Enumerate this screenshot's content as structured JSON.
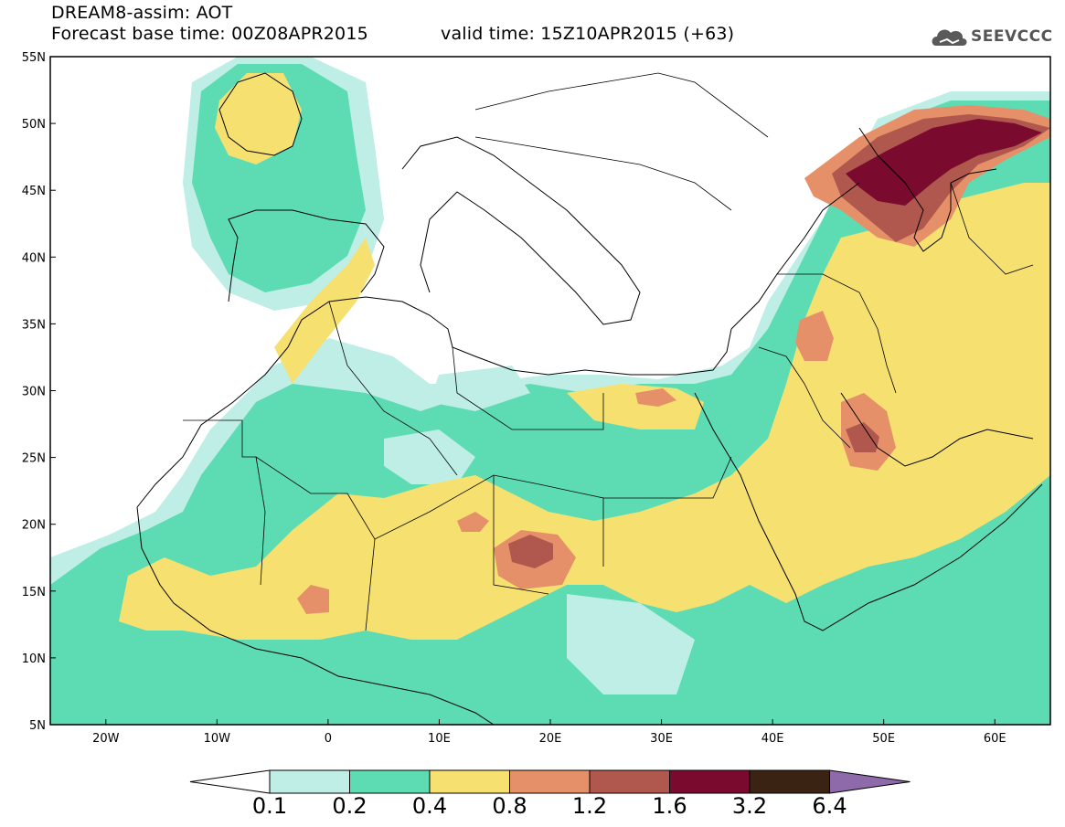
{
  "header": {
    "line1": "DREAM8-assim: AOT",
    "line2": "Forecast base time: 00Z08APR2015",
    "valid": "valid time: 15Z10APR2015 (+63)",
    "logo_text": "SEEVCCC"
  },
  "map": {
    "lat_labels": [
      "55N",
      "50N",
      "45N",
      "40N",
      "35N",
      "30N",
      "25N",
      "20N",
      "15N",
      "10N",
      "5N"
    ],
    "lon_labels": [
      "20W",
      "10W",
      "0",
      "10E",
      "20E",
      "30E",
      "40E",
      "50E",
      "60E"
    ],
    "water_color": "#ffffff",
    "land_boundary_color": "#000000"
  },
  "colorbar": {
    "labels": [
      "0.1",
      "0.2",
      "0.4",
      "0.8",
      "1.2",
      "1.6",
      "3.2",
      "6.4"
    ],
    "colors": [
      "#ffffff",
      "#bfeee6",
      "#5ddcb4",
      "#f6e170",
      "#e6906a",
      "#b0584e",
      "#7a0a2e",
      "#3a2312",
      "#8e6aaa"
    ]
  },
  "chart_data": {
    "type": "heatmap",
    "variable": "AOT",
    "contour_levels": [
      0.1,
      0.2,
      0.4,
      0.8,
      1.2,
      1.6,
      3.2,
      6.4
    ],
    "xlim": [
      -25,
      65
    ],
    "ylim": [
      5,
      55
    ]
  }
}
